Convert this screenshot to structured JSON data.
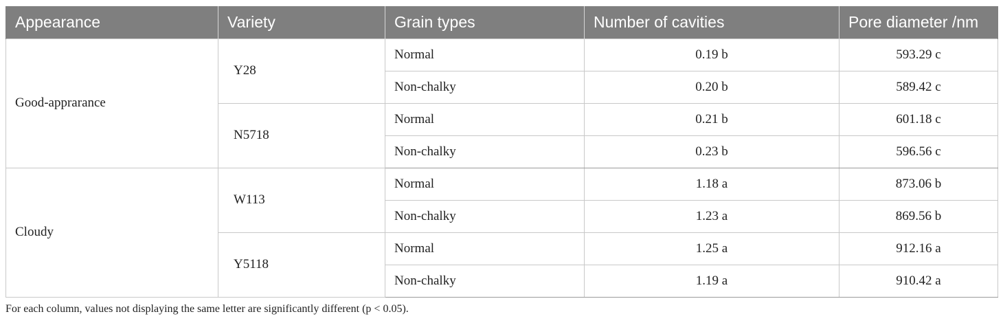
{
  "table": {
    "headers": [
      "Appearance",
      "Variety",
      "Grain types",
      "Number of cavities",
      "Pore diameter /nm"
    ],
    "groups": [
      {
        "appearance": "Good-apprarance",
        "varieties": [
          {
            "name": "Y28",
            "rows": [
              {
                "grain": "Normal",
                "cavities": "0.19 b",
                "pore": "593.29 c"
              },
              {
                "grain": "Non-chalky",
                "cavities": "0.20 b",
                "pore": "589.42 c"
              }
            ]
          },
          {
            "name": "N5718",
            "rows": [
              {
                "grain": "Normal",
                "cavities": "0.21 b",
                "pore": "601.18 c"
              },
              {
                "grain": "Non-chalky",
                "cavities": "0.23 b",
                "pore": "596.56 c"
              }
            ]
          }
        ]
      },
      {
        "appearance": "Cloudy",
        "varieties": [
          {
            "name": "W113",
            "rows": [
              {
                "grain": "Normal",
                "cavities": "1.18 a",
                "pore": "873.06 b"
              },
              {
                "grain": "Non-chalky",
                "cavities": "1.23 a",
                "pore": "869.56 b"
              }
            ]
          },
          {
            "name": "Y5118",
            "rows": [
              {
                "grain": "Normal",
                "cavities": "1.25 a",
                "pore": "912.16 a"
              },
              {
                "grain": "Non-chalky",
                "cavities": "1.19 a",
                "pore": "910.42 a"
              }
            ]
          }
        ]
      }
    ]
  },
  "footnote": "For each column, values not displaying the same letter are significantly different (p < 0.05)."
}
